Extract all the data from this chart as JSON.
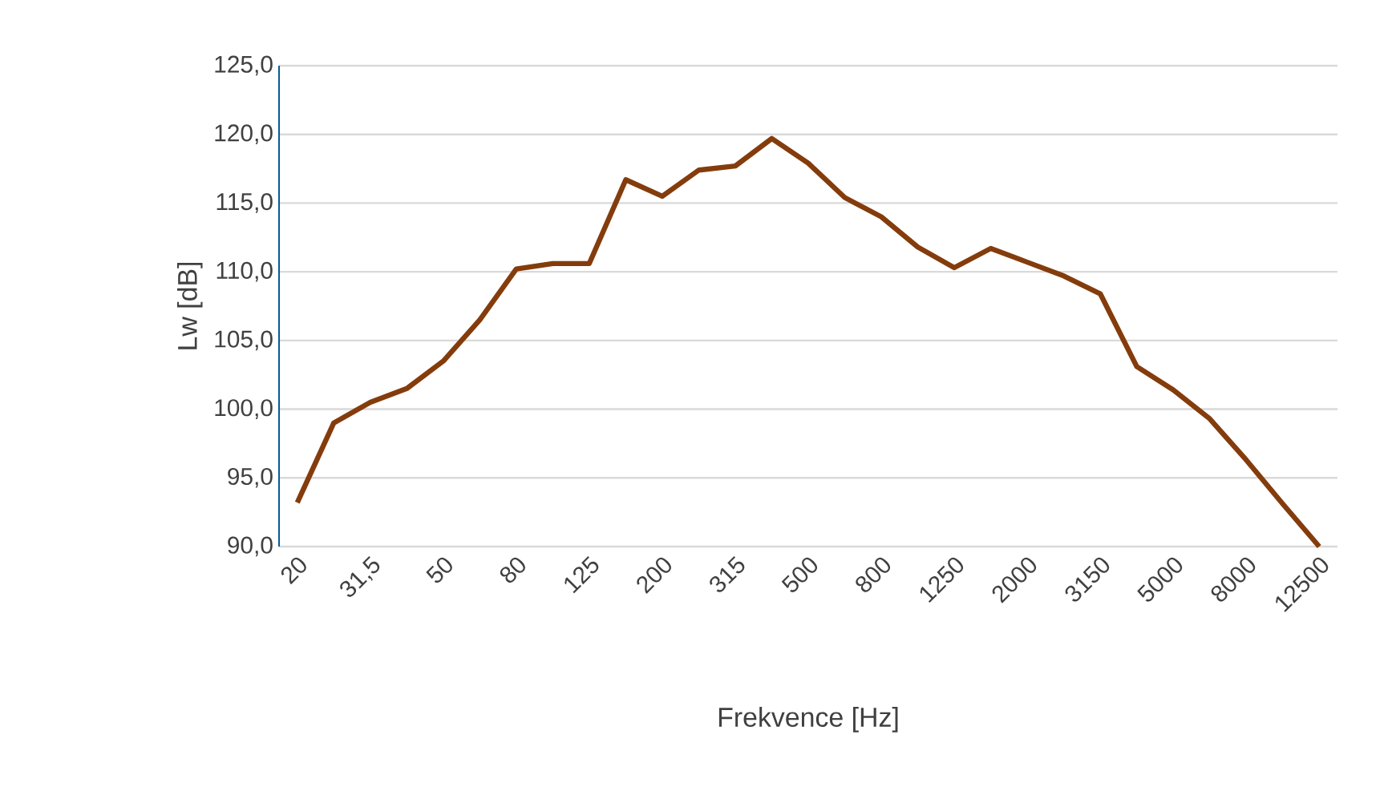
{
  "chart_data": {
    "type": "line",
    "xlabel": "Frekvence [Hz]",
    "ylabel": "Lw [dB]",
    "categories": [
      "20",
      null,
      "31,5",
      null,
      "50",
      null,
      "80",
      null,
      "125",
      null,
      "200",
      null,
      "315",
      null,
      "500",
      null,
      "800",
      null,
      "1250",
      null,
      "2000",
      null,
      "3150",
      null,
      "5000",
      null,
      "8000",
      null,
      "12500"
    ],
    "series": [
      {
        "color": "#843c0c",
        "values": [
          93.2,
          99.0,
          100.5,
          101.5,
          103.5,
          106.5,
          110.2,
          110.6,
          110.6,
          116.7,
          115.5,
          117.4,
          117.7,
          119.7,
          117.9,
          115.4,
          114.0,
          111.8,
          110.3,
          111.7,
          110.7,
          109.7,
          108.4,
          103.1,
          101.4,
          99.3,
          96.3,
          93.1,
          90.0
        ]
      }
    ],
    "ylim": [
      90,
      125
    ],
    "yticks": [
      {
        "value": 90,
        "label": "90,0"
      },
      {
        "value": 95,
        "label": "95,0"
      },
      {
        "value": 100,
        "label": "100,0"
      },
      {
        "value": 105,
        "label": "105,0"
      },
      {
        "value": 110,
        "label": "110,0"
      },
      {
        "value": 115,
        "label": "115,0"
      },
      {
        "value": 120,
        "label": "120,0"
      },
      {
        "value": 125,
        "label": "125,0"
      }
    ],
    "grid": "y",
    "marker": "none",
    "line_style": "solid"
  }
}
